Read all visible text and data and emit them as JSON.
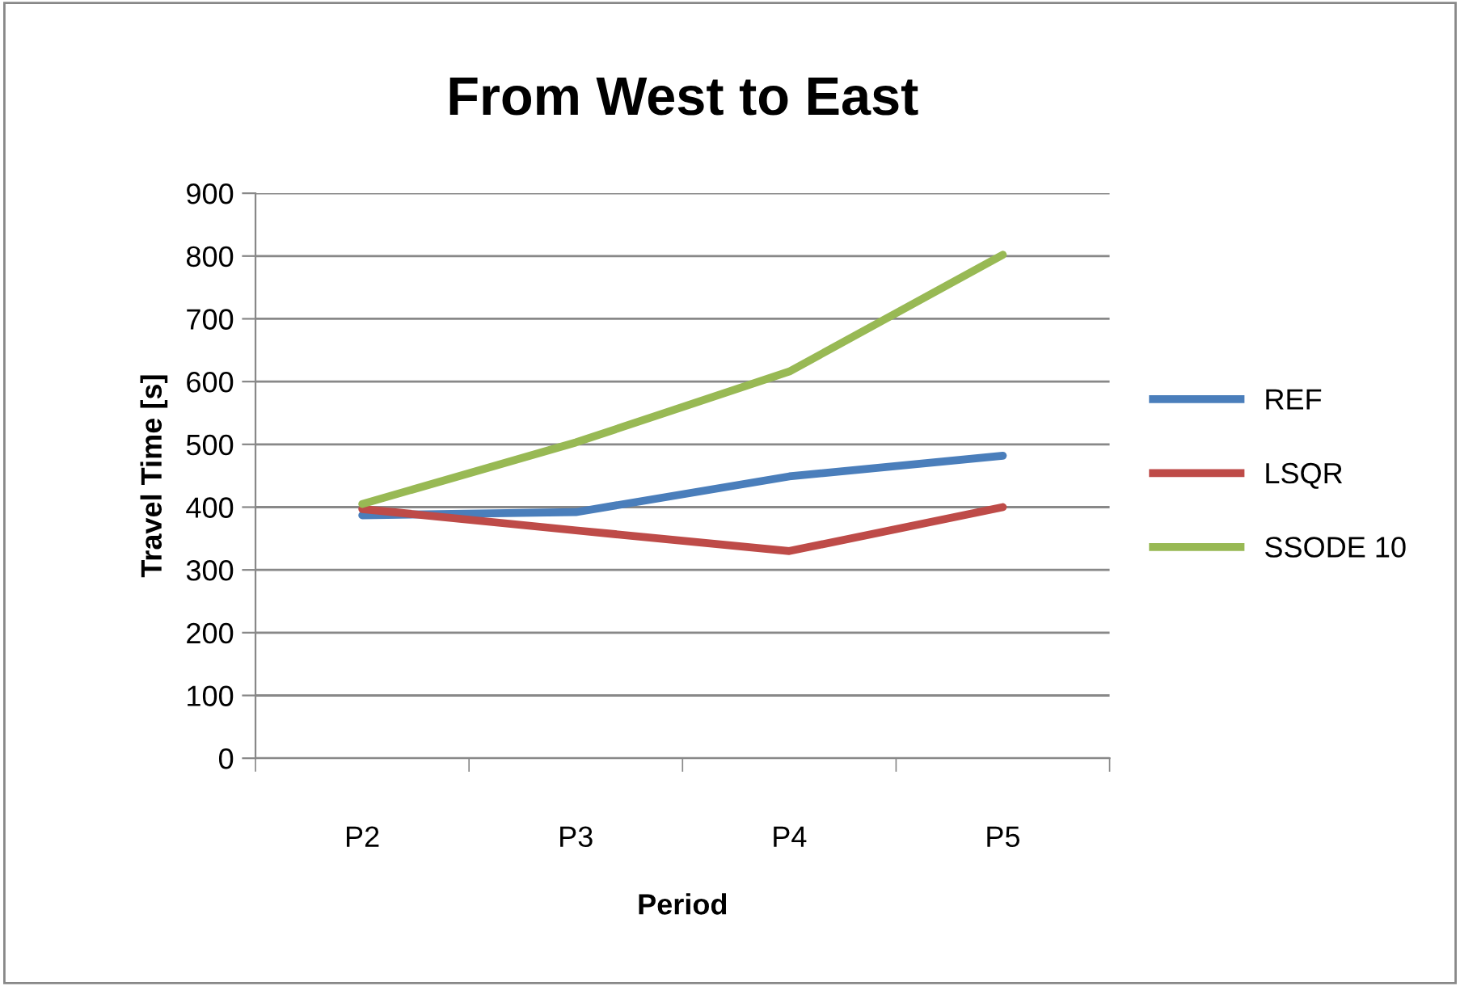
{
  "chart_data": {
    "type": "line",
    "title": "From West to East",
    "xlabel": "Period",
    "ylabel": "Travel Time [s]",
    "categories": [
      "P2",
      "P3",
      "P4",
      "P5"
    ],
    "series": [
      {
        "name": "REF",
        "color": "#4a7ebb",
        "values": [
          387,
          392,
          449,
          482
        ]
      },
      {
        "name": "LSQR",
        "color": "#be4b48",
        "values": [
          397,
          363,
          330,
          400
        ]
      },
      {
        "name": "SSODE 10",
        "color": "#98b954",
        "values": [
          405,
          503,
          616,
          802
        ]
      }
    ],
    "ylim": [
      0,
      900
    ],
    "yticks": [
      0,
      100,
      200,
      300,
      400,
      500,
      600,
      700,
      800,
      900
    ],
    "grid": "y",
    "legend": "right",
    "marker": "none",
    "line_style": "solid"
  }
}
